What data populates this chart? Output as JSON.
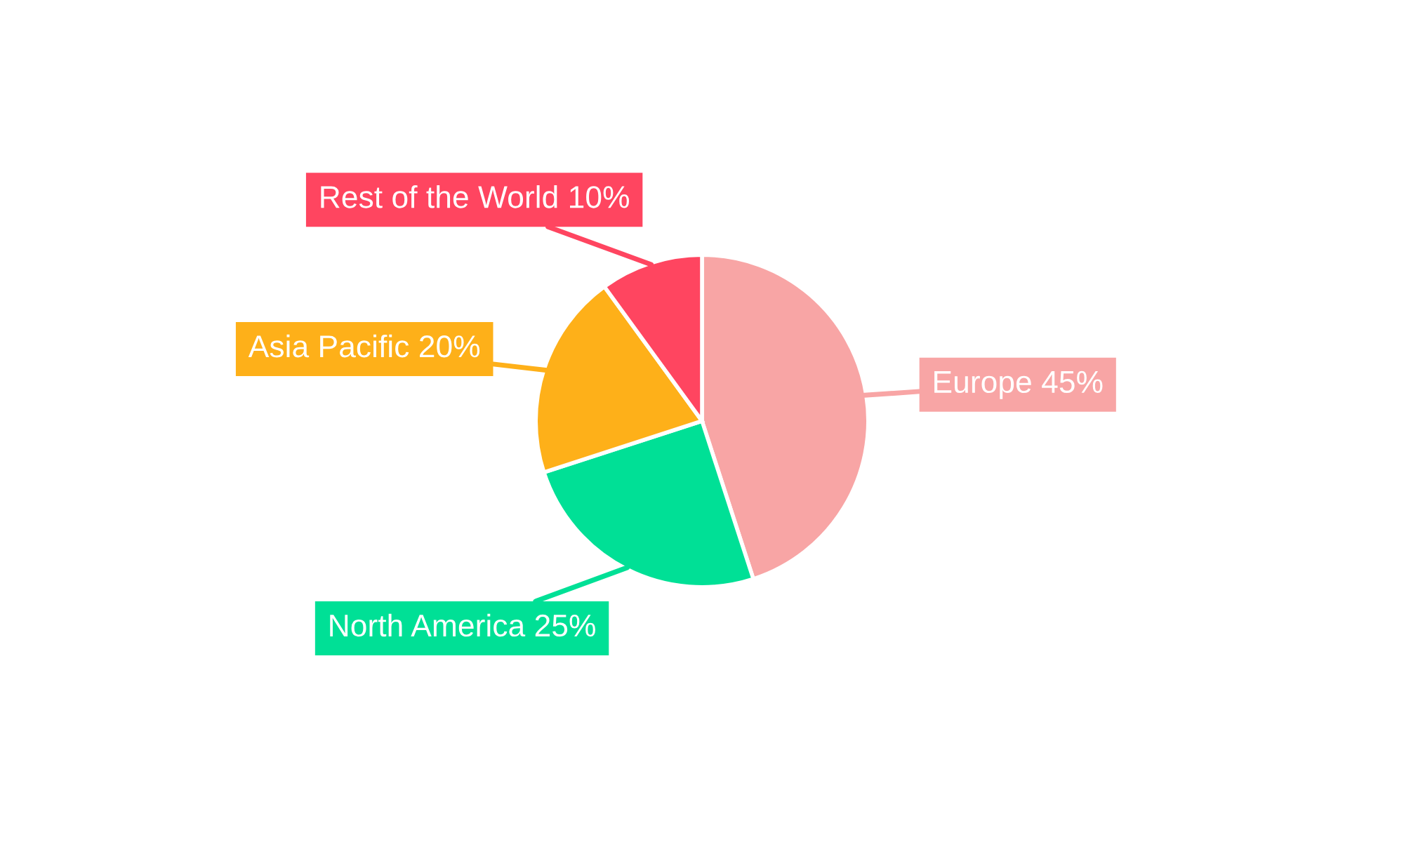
{
  "chart_data": {
    "type": "pie",
    "categories": [
      "Europe",
      "North America",
      "Asia Pacific",
      "Rest of the World"
    ],
    "values": [
      45,
      25,
      20,
      10
    ],
    "value_labels": [
      "45%",
      "25%",
      "20%",
      "10%"
    ],
    "colors": [
      "#f8a5a5",
      "#00e096",
      "#feb019",
      "#ff4560"
    ],
    "legend": false
  }
}
